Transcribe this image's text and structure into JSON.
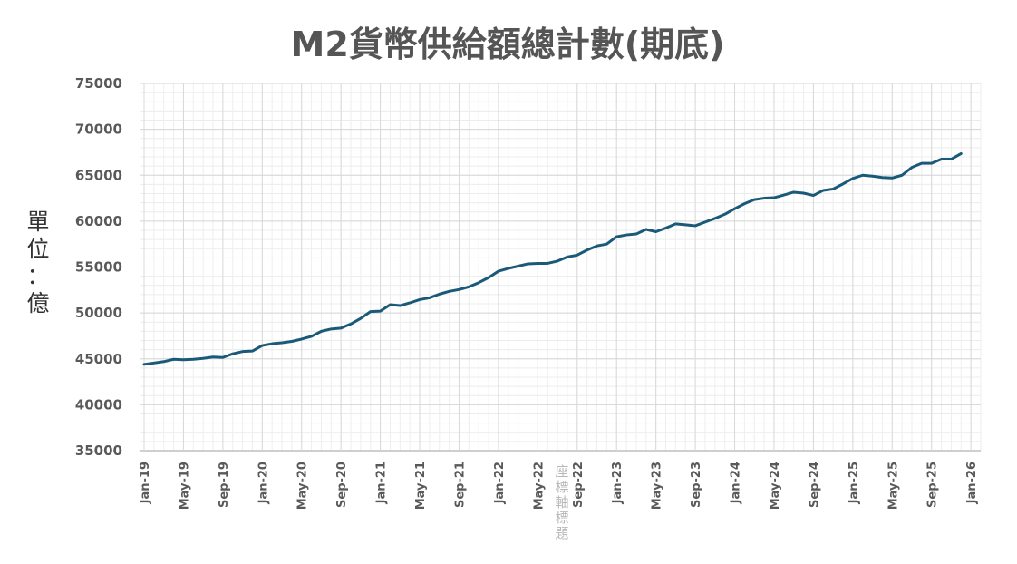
{
  "chart_data": {
    "type": "line",
    "title": "M2貨幣供給額總計數(期底)",
    "ylabel": "單位：億",
    "xlabel": "",
    "axis_note": "座標軸標題",
    "ylim": [
      35000,
      75000
    ],
    "y_ticks": [
      75000,
      70000,
      65000,
      60000,
      55000,
      50000,
      45000,
      40000,
      35000
    ],
    "x_ticks": [
      "Jan-19",
      "May-19",
      "Sep-19",
      "Jan-20",
      "May-20",
      "Sep-20",
      "Jan-21",
      "May-21",
      "Sep-21",
      "Jan-22",
      "May-22",
      "Sep-22",
      "Jan-23",
      "May-23",
      "Sep-23",
      "Jan-24",
      "May-24",
      "Sep-24",
      "Jan-25",
      "May-25",
      "Sep-25",
      "Jan-26"
    ],
    "grid": true,
    "line_color": "#1a5a78",
    "series": [
      {
        "values": [
          44400,
          44550,
          44700,
          44950,
          44900,
          44950,
          45050,
          45200,
          45150,
          45550,
          45800,
          45850,
          46450,
          46650,
          46750,
          46900,
          47150,
          47450,
          48000,
          48250,
          48350,
          48800,
          49400,
          50150,
          50200,
          50900,
          50800,
          51100,
          51450,
          51650,
          52050,
          52350,
          52550,
          52850,
          53300,
          53850,
          54550,
          54850,
          55100,
          55350,
          55400,
          55400,
          55650,
          56100,
          56300,
          56850,
          57300,
          57500,
          58300,
          58500,
          58600,
          59100,
          58850,
          59250,
          59700,
          59600,
          59500,
          59900,
          60300,
          60750,
          61350,
          61900,
          62350,
          62500,
          62550,
          62850,
          63150,
          63050,
          62800,
          63350,
          63500,
          64050,
          64650,
          65000,
          64900,
          64750,
          64700,
          65000,
          65850,
          66300,
          66300,
          66750,
          66750,
          67350
        ]
      }
    ]
  }
}
